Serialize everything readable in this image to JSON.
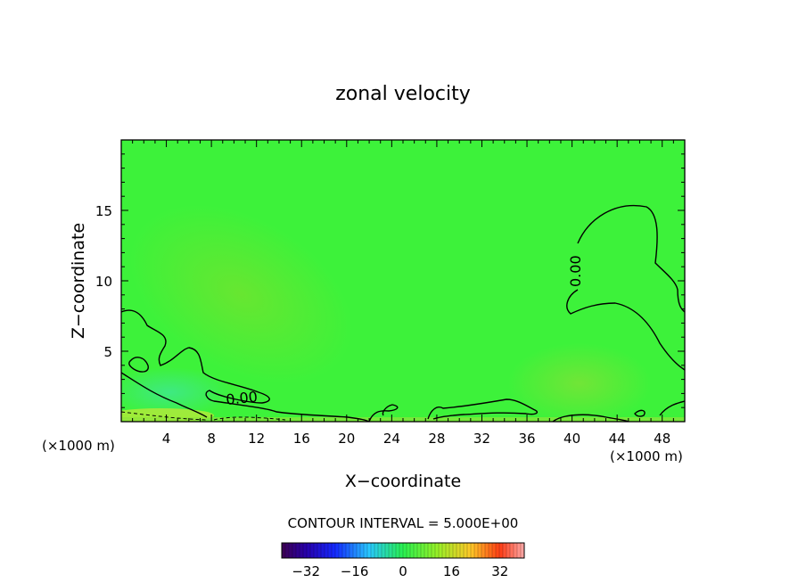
{
  "chart_data": {
    "type": "heatmap",
    "title": "zonal velocity",
    "xlabel": "X−coordinate",
    "ylabel": "Z−coordinate",
    "x_unit_left": "(×1000 m)",
    "x_unit_right": "(×1000 m)",
    "xlim": [
      0,
      50
    ],
    "ylim": [
      0,
      20
    ],
    "x_ticks": [
      4,
      8,
      12,
      16,
      20,
      24,
      28,
      32,
      36,
      40,
      44,
      48
    ],
    "x_tick_labels": [
      "4",
      "8",
      "12",
      "16",
      "20",
      "24",
      "28",
      "32",
      "36",
      "40",
      "44",
      "48"
    ],
    "y_ticks": [
      5,
      10,
      15
    ],
    "y_tick_labels": [
      "5",
      "10",
      "15"
    ],
    "contour_interval_label": "CONTOUR INTERVAL = 5.000E+00",
    "contour_labels": [
      "0.00",
      "0.00"
    ],
    "colorbar": {
      "min": -40,
      "max": 40,
      "tick_values": [
        -32,
        -16,
        0,
        16,
        32
      ],
      "tick_labels": [
        "−32",
        "−16",
        "0",
        "16",
        "32"
      ]
    },
    "grid": false,
    "colors": {
      "field_background": "#3df23a",
      "contour_line": "#000000"
    }
  }
}
